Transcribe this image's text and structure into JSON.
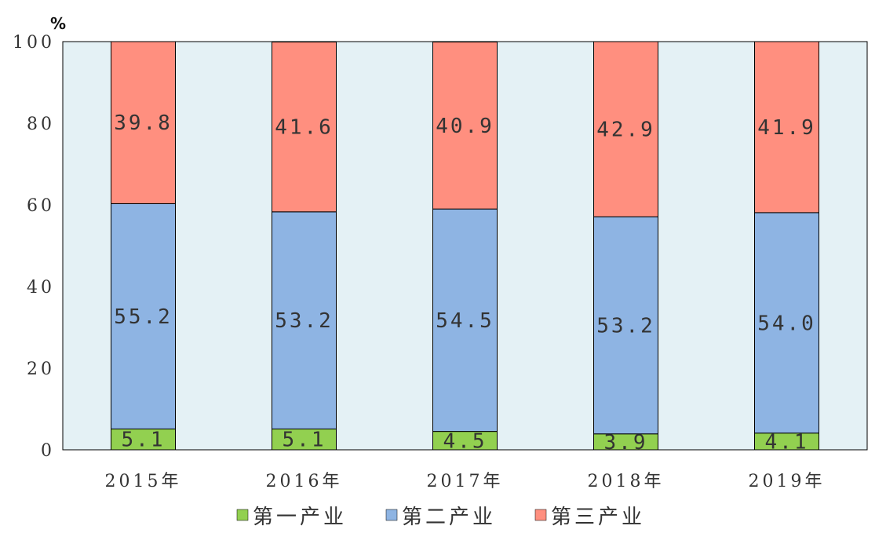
{
  "chart_data": {
    "type": "bar",
    "stacked": true,
    "unit": "%",
    "categories": [
      "2015年",
      "2016年",
      "2017年",
      "2018年",
      "2019年"
    ],
    "series": [
      {
        "name": "第一产业",
        "values": [
          5.1,
          5.1,
          4.5,
          3.9,
          4.1
        ],
        "color": "#92d050"
      },
      {
        "name": "第二产业",
        "values": [
          55.2,
          53.2,
          54.5,
          53.2,
          54.0
        ],
        "color": "#8eb4e3"
      },
      {
        "name": "第三产业",
        "values": [
          39.8,
          41.6,
          40.9,
          42.9,
          41.9
        ],
        "color": "#ff8f7f"
      }
    ],
    "value_labels": [
      [
        "5.1",
        "5.1",
        "4.5",
        "3.9",
        "4.1"
      ],
      [
        "55.2",
        "53.2",
        "54.5",
        "53.2",
        "54.0"
      ],
      [
        "39.8",
        "41.6",
        "40.9",
        "42.9",
        "41.9"
      ]
    ],
    "ylim": [
      0,
      100
    ],
    "yticks": [
      "0",
      "20",
      "40",
      "60",
      "80",
      "100"
    ],
    "plot_background": "#e4f1f5",
    "grid": false,
    "legend_position": "bottom-center"
  }
}
